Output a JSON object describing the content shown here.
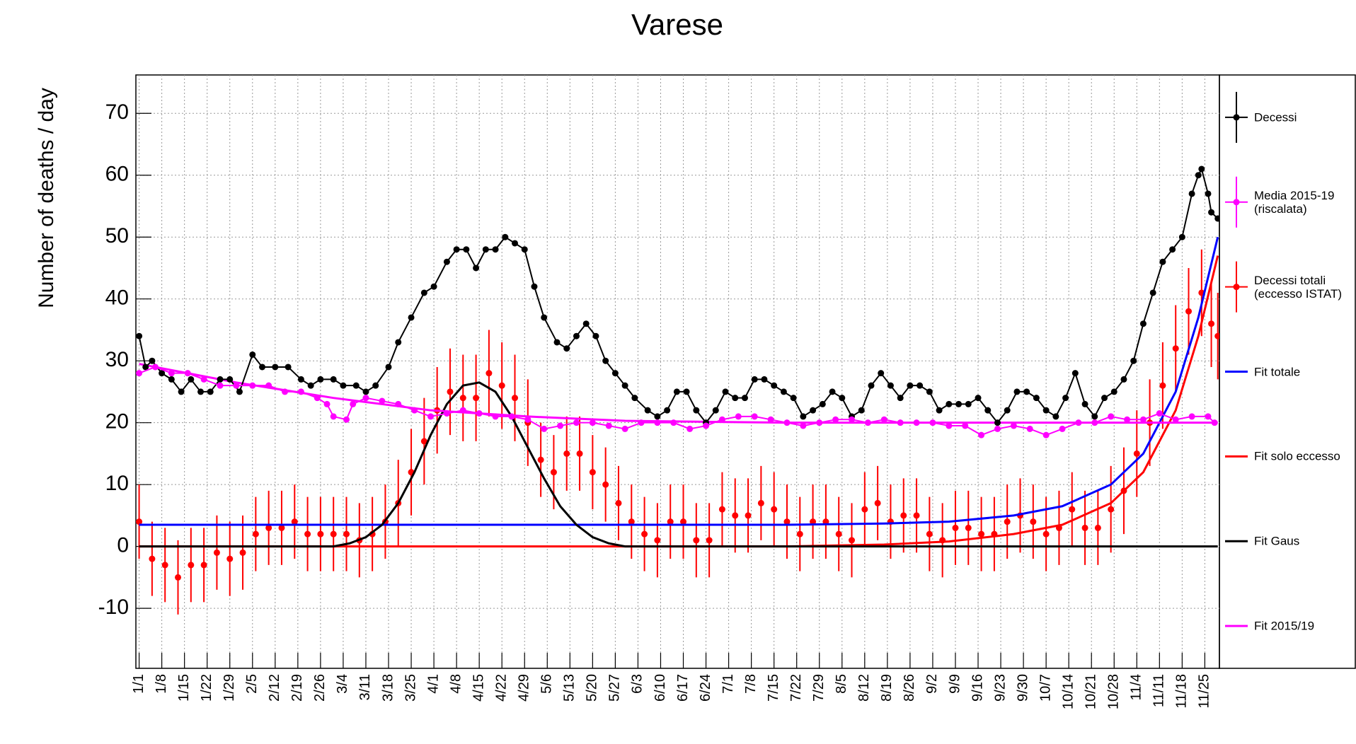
{
  "chart_data": {
    "type": "line",
    "title": "Varese",
    "y_label": "Number of deaths / day",
    "xlim": [
      -1,
      333.5
    ],
    "ylim": [
      -19.7,
      76.2
    ],
    "grid": true,
    "legend": "right",
    "yticks": [
      -10,
      0,
      10,
      20,
      30,
      40,
      50,
      60,
      70
    ],
    "xticks": [
      {
        "value": 0,
        "label": "1/1"
      },
      {
        "value": 7,
        "label": "1/8"
      },
      {
        "value": 14,
        "label": "1/15"
      },
      {
        "value": 21,
        "label": "1/22"
      },
      {
        "value": 28,
        "label": "1/29"
      },
      {
        "value": 35,
        "label": "2/5"
      },
      {
        "value": 42,
        "label": "2/12"
      },
      {
        "value": 49,
        "label": "2/19"
      },
      {
        "value": 56,
        "label": "2/26"
      },
      {
        "value": 63,
        "label": "3/4"
      },
      {
        "value": 70,
        "label": "3/11"
      },
      {
        "value": 77,
        "label": "3/18"
      },
      {
        "value": 84,
        "label": "3/25"
      },
      {
        "value": 91,
        "label": "4/1"
      },
      {
        "value": 98,
        "label": "4/8"
      },
      {
        "value": 105,
        "label": "4/15"
      },
      {
        "value": 112,
        "label": "4/22"
      },
      {
        "value": 119,
        "label": "4/29"
      },
      {
        "value": 126,
        "label": "5/6"
      },
      {
        "value": 133,
        "label": "5/13"
      },
      {
        "value": 140,
        "label": "5/20"
      },
      {
        "value": 147,
        "label": "5/27"
      },
      {
        "value": 154,
        "label": "6/3"
      },
      {
        "value": 161,
        "label": "6/10"
      },
      {
        "value": 168,
        "label": "6/17"
      },
      {
        "value": 175,
        "label": "6/24"
      },
      {
        "value": 182,
        "label": "7/1"
      },
      {
        "value": 189,
        "label": "7/8"
      },
      {
        "value": 196,
        "label": "7/15"
      },
      {
        "value": 203,
        "label": "7/22"
      },
      {
        "value": 210,
        "label": "7/29"
      },
      {
        "value": 217,
        "label": "8/5"
      },
      {
        "value": 224,
        "label": "8/12"
      },
      {
        "value": 231,
        "label": "8/19"
      },
      {
        "value": 238,
        "label": "8/26"
      },
      {
        "value": 245,
        "label": "9/2"
      },
      {
        "value": 252,
        "label": "9/9"
      },
      {
        "value": 259,
        "label": "9/16"
      },
      {
        "value": 266,
        "label": "9/23"
      },
      {
        "value": 273,
        "label": "9/30"
      },
      {
        "value": 280,
        "label": "10/7"
      },
      {
        "value": 287,
        "label": "10/14"
      },
      {
        "value": 294,
        "label": "10/21"
      },
      {
        "value": 301,
        "label": "10/28"
      },
      {
        "value": 308,
        "label": "11/4"
      },
      {
        "value": 315,
        "label": "11/11"
      },
      {
        "value": 322,
        "label": "11/18"
      },
      {
        "value": 329,
        "label": "11/25"
      }
    ],
    "series": [
      {
        "name": "Decessi",
        "color": "#000000",
        "style": "points",
        "x": [
          0,
          2,
          4,
          7,
          10,
          13,
          16,
          19,
          22,
          25,
          28,
          31,
          35,
          38,
          42,
          46,
          50,
          53,
          56,
          60,
          63,
          67,
          70,
          73,
          77,
          80,
          84,
          88,
          91,
          95,
          98,
          101,
          104,
          107,
          110,
          113,
          116,
          119,
          122,
          125,
          129,
          132,
          135,
          138,
          141,
          144,
          147,
          150,
          153,
          157,
          160,
          163,
          166,
          169,
          172,
          175,
          178,
          181,
          184,
          187,
          190,
          193,
          196,
          199,
          202,
          205,
          208,
          211,
          214,
          217,
          220,
          223,
          226,
          229,
          232,
          235,
          238,
          241,
          244,
          247,
          250,
          253,
          256,
          259,
          262,
          265,
          268,
          271,
          274,
          277,
          280,
          283,
          286,
          289,
          292,
          295,
          298,
          301,
          304,
          307,
          310,
          313,
          316,
          319,
          322,
          325,
          327,
          328,
          330,
          331,
          333
        ],
        "values": [
          34,
          29,
          30,
          28,
          27,
          25,
          27,
          25,
          25,
          27,
          27,
          25,
          31,
          29,
          29,
          29,
          27,
          26,
          27,
          27,
          26,
          26,
          25,
          26,
          29,
          33,
          37,
          41,
          42,
          46,
          48,
          48,
          45,
          48,
          48,
          50,
          49,
          48,
          42,
          37,
          33,
          32,
          34,
          36,
          34,
          30,
          28,
          26,
          24,
          22,
          21,
          22,
          25,
          25,
          22,
          20,
          22,
          25,
          24,
          24,
          27,
          27,
          26,
          25,
          24,
          21,
          22,
          23,
          25,
          24,
          21,
          22,
          26,
          28,
          26,
          24,
          26,
          26,
          25,
          22,
          23,
          23,
          23,
          24,
          22,
          20,
          22,
          25,
          25,
          24,
          22,
          21,
          24,
          28,
          23,
          21,
          24,
          25,
          27,
          30,
          36,
          41,
          46,
          48,
          50,
          57,
          60,
          61,
          57,
          54,
          53
        ]
      },
      {
        "name": "Media 2015-19\n(riscalata)",
        "color": "#ff00ff",
        "style": "points",
        "x": [
          0,
          5,
          10,
          15,
          20,
          25,
          30,
          35,
          40,
          45,
          50,
          55,
          58,
          60,
          64,
          66,
          70,
          75,
          80,
          85,
          90,
          95,
          100,
          105,
          110,
          115,
          120,
          125,
          130,
          135,
          140,
          145,
          150,
          155,
          160,
          165,
          170,
          175,
          180,
          185,
          190,
          195,
          200,
          205,
          210,
          215,
          220,
          225,
          230,
          235,
          240,
          245,
          250,
          255,
          260,
          265,
          270,
          275,
          280,
          285,
          290,
          295,
          300,
          305,
          310,
          315,
          320,
          325,
          330,
          332
        ],
        "values": [
          28,
          29,
          28,
          28,
          27,
          26,
          26,
          26,
          26,
          25,
          25,
          24,
          23,
          21,
          20.5,
          23,
          24,
          23.5,
          23,
          22,
          21,
          21.5,
          22,
          21.5,
          21,
          21,
          20.5,
          19,
          19.5,
          20,
          20,
          19.5,
          19,
          20,
          20,
          20,
          19,
          19.5,
          20.5,
          21,
          21,
          20.5,
          20,
          19.5,
          20,
          20.5,
          20.5,
          20,
          20.5,
          20,
          20,
          20,
          19.5,
          19.5,
          18,
          19,
          19.5,
          19,
          18,
          19,
          20,
          20,
          21,
          20.5,
          20.5,
          21.5,
          20.5,
          21,
          21,
          20
        ]
      },
      {
        "name": "Decessi totali\n(eccesso ISTAT)",
        "color": "#ff0000",
        "style": "errorbars",
        "x": [
          0,
          4,
          8,
          12,
          16,
          20,
          24,
          28,
          32,
          36,
          40,
          44,
          48,
          52,
          56,
          60,
          64,
          68,
          72,
          76,
          80,
          84,
          88,
          92,
          96,
          100,
          104,
          108,
          112,
          116,
          120,
          124,
          128,
          132,
          136,
          140,
          144,
          148,
          152,
          156,
          160,
          164,
          168,
          172,
          176,
          180,
          184,
          188,
          192,
          196,
          200,
          204,
          208,
          212,
          216,
          220,
          224,
          228,
          232,
          236,
          240,
          244,
          248,
          252,
          256,
          260,
          264,
          268,
          272,
          276,
          280,
          284,
          288,
          292,
          296,
          300,
          304,
          308,
          312,
          316,
          320,
          324,
          328,
          331,
          333
        ],
        "values": [
          4,
          -2,
          -3,
          -5,
          -3,
          -3,
          -1,
          -2,
          -1,
          2,
          3,
          3,
          4,
          2,
          2,
          2,
          2,
          1,
          2,
          4,
          7,
          12,
          17,
          22,
          25,
          24,
          24,
          28,
          26,
          24,
          20,
          14,
          12,
          15,
          15,
          12,
          10,
          7,
          4,
          2,
          1,
          4,
          4,
          1,
          1,
          6,
          5,
          5,
          7,
          6,
          4,
          2,
          4,
          4,
          2,
          1,
          6,
          7,
          4,
          5,
          5,
          2,
          1,
          3,
          3,
          2,
          2,
          4,
          5,
          4,
          2,
          3,
          6,
          3,
          3,
          6,
          9,
          15,
          20,
          26,
          32,
          38,
          41,
          36,
          34
        ],
        "errors": [
          6,
          6,
          6,
          6,
          6,
          6,
          6,
          6,
          6,
          6,
          6,
          6,
          6,
          6,
          6,
          6,
          6,
          6,
          6,
          6,
          7,
          7,
          7,
          7,
          7,
          7,
          7,
          7,
          7,
          7,
          7,
          6,
          6,
          6,
          6,
          6,
          6,
          6,
          6,
          6,
          6,
          6,
          6,
          6,
          6,
          6,
          6,
          6,
          6,
          6,
          6,
          6,
          6,
          6,
          6,
          6,
          6,
          6,
          6,
          6,
          6,
          6,
          6,
          6,
          6,
          6,
          6,
          6,
          6,
          6,
          6,
          6,
          6,
          6,
          6,
          7,
          7,
          7,
          7,
          7,
          7,
          7,
          7,
          7,
          7
        ]
      },
      {
        "name": "Fit totale",
        "color": "#0000ff",
        "style": "line",
        "x": [
          0,
          155,
          200,
          230,
          250,
          270,
          285,
          300,
          310,
          320,
          327,
          333
        ],
        "values": [
          3.5,
          3.5,
          3.5,
          3.7,
          4,
          5,
          6.5,
          10,
          15,
          25,
          37,
          50
        ]
      },
      {
        "name": "Fit solo eccesso",
        "color": "#ff0000",
        "style": "line",
        "x": [
          0,
          200,
          230,
          250,
          270,
          285,
          300,
          310,
          320,
          327,
          333
        ],
        "values": [
          0,
          0,
          0.3,
          0.8,
          2,
          3.5,
          7,
          12,
          22,
          34,
          47
        ]
      },
      {
        "name": "Fit Gaus",
        "color": "#000000",
        "style": "line",
        "x": [
          0,
          60,
          65,
          70,
          75,
          80,
          85,
          90,
          95,
          100,
          105,
          110,
          115,
          120,
          125,
          130,
          135,
          140,
          145,
          150,
          333
        ],
        "values": [
          0,
          0,
          0.5,
          1.5,
          3.5,
          7,
          12,
          18,
          23,
          26,
          26.5,
          25,
          21,
          16,
          11,
          6.5,
          3.5,
          1.5,
          0.5,
          0,
          0
        ]
      },
      {
        "name": "Fit 2015/19",
        "color": "#ff00ff",
        "style": "line",
        "x": [
          0,
          30,
          60,
          90,
          120,
          150,
          200,
          333
        ],
        "values": [
          29.5,
          26.5,
          24,
          22,
          21,
          20.3,
          20,
          20
        ]
      }
    ]
  }
}
